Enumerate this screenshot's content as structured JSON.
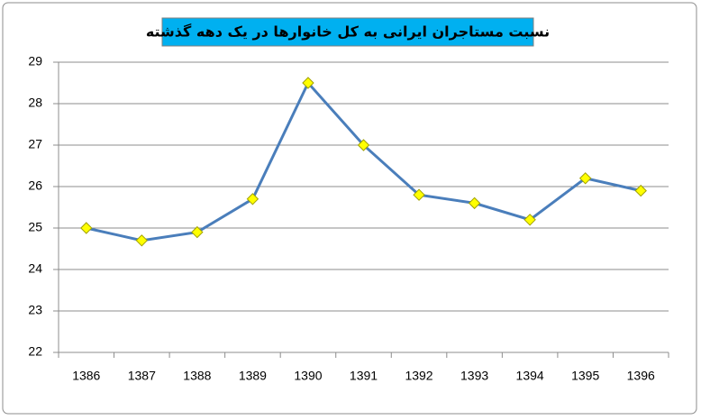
{
  "chart_data": {
    "type": "line",
    "title": "نسبت مستاجران ایرانی به کل خانوارها در یک دهه گذشته",
    "categories": [
      "1386",
      "1387",
      "1388",
      "1389",
      "1390",
      "1391",
      "1392",
      "1393",
      "1394",
      "1395",
      "1396"
    ],
    "values": [
      25,
      24.7,
      24.9,
      25.7,
      28.5,
      27,
      25.8,
      25.6,
      25.2,
      26.2,
      25.9
    ],
    "color": "#4a7ebb",
    "marker_color": "#ffff00",
    "ylim": [
      22,
      29
    ],
    "yticks": [
      22,
      23,
      24,
      25,
      26,
      27,
      28,
      29
    ],
    "grid": true
  }
}
